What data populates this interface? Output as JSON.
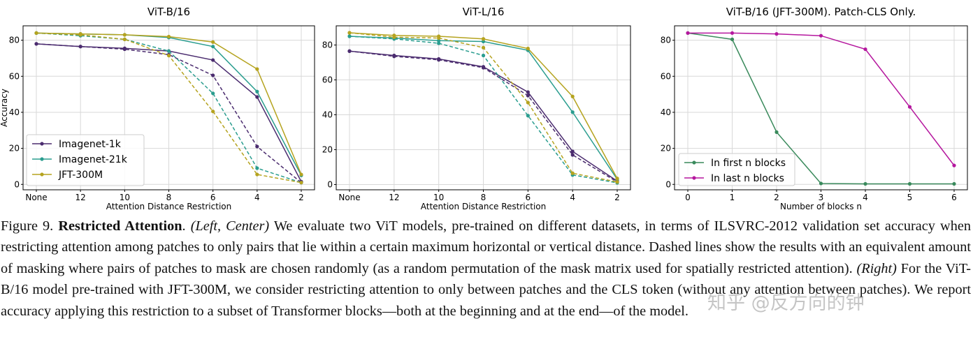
{
  "chart_data": [
    {
      "type": "line",
      "title": "ViT-B/16",
      "xlabel": "Attention Distance Restriction",
      "ylabel": "Accuracy",
      "categories": [
        "None",
        "12",
        "10",
        "8",
        "6",
        "4",
        "2"
      ],
      "yticks": [
        "0",
        "20",
        "40",
        "60",
        "80"
      ],
      "ylim": [
        -3,
        88
      ],
      "legend_position": "lower-left",
      "series": [
        {
          "name": "Imagenet-1k",
          "color": "#4b2c6f",
          "style": "solid",
          "values": [
            78,
            76.5,
            75.5,
            74,
            69,
            48.5,
            1.5
          ]
        },
        {
          "name": "Imagenet-21k",
          "color": "#2a9d8f",
          "style": "solid",
          "values": [
            84,
            83.5,
            83,
            81.5,
            76.5,
            51.5,
            5
          ]
        },
        {
          "name": "JFT-300M",
          "color": "#b5a31f",
          "style": "solid",
          "values": [
            84,
            83.5,
            83,
            82,
            79,
            64,
            5.5
          ]
        },
        {
          "name": "Imagenet-1k",
          "color": "#4b2c6f",
          "style": "dashed",
          "values": [
            78,
            76.5,
            75,
            72,
            60.5,
            21,
            1
          ]
        },
        {
          "name": "Imagenet-21k",
          "color": "#2a9d8f",
          "style": "dashed",
          "values": [
            84,
            82.5,
            80.5,
            74,
            50.5,
            9,
            1
          ]
        },
        {
          "name": "JFT-300M",
          "color": "#b5a31f",
          "style": "dashed",
          "values": [
            84,
            83,
            80.5,
            71.5,
            40.5,
            5.5,
            1
          ]
        }
      ]
    },
    {
      "type": "line",
      "title": "ViT-L/16",
      "xlabel": "Attention Distance Restriction",
      "ylabel": "",
      "categories": [
        "None",
        "12",
        "10",
        "8",
        "6",
        "4",
        "2"
      ],
      "yticks": [
        "0",
        "20",
        "40",
        "60",
        "80"
      ],
      "ylim": [
        -3,
        91
      ],
      "series": [
        {
          "name": "Imagenet-1k",
          "color": "#4b2c6f",
          "style": "solid",
          "values": [
            76.5,
            74,
            72,
            67.5,
            53,
            19,
            2
          ]
        },
        {
          "name": "Imagenet-21k",
          "color": "#2a9d8f",
          "style": "solid",
          "values": [
            85,
            84,
            82.5,
            82,
            77,
            41.5,
            3
          ]
        },
        {
          "name": "JFT-300M",
          "color": "#b5a31f",
          "style": "solid",
          "values": [
            87,
            85.5,
            85,
            83.5,
            78,
            50.5,
            3.5
          ]
        },
        {
          "name": "Imagenet-1k",
          "color": "#4b2c6f",
          "style": "dashed",
          "values": [
            76.5,
            73.5,
            71.5,
            67,
            51,
            17,
            1.5
          ]
        },
        {
          "name": "Imagenet-21k",
          "color": "#2a9d8f",
          "style": "dashed",
          "values": [
            85,
            83.5,
            81,
            74,
            39.5,
            5.5,
            1
          ]
        },
        {
          "name": "JFT-300M",
          "color": "#b5a31f",
          "style": "dashed",
          "values": [
            87,
            84.5,
            84,
            78.5,
            47,
            6.5,
            1.5
          ]
        }
      ]
    },
    {
      "type": "line",
      "title": "ViT-B/16 (JFT-300M). Patch-CLS Only.",
      "xlabel": "Number of blocks n",
      "ylabel": "",
      "categories": [
        "0",
        "1",
        "2",
        "3",
        "4",
        "5",
        "6"
      ],
      "yticks": [
        "0",
        "20",
        "40",
        "60",
        "80"
      ],
      "ylim": [
        -3,
        88
      ],
      "legend_position": "lower-left",
      "series": [
        {
          "name": "In first n blocks",
          "color": "#3a8a5c",
          "style": "solid",
          "values": [
            84,
            80.5,
            29,
            0.5,
            0.3,
            0.3,
            0.3
          ]
        },
        {
          "name": "In last n blocks",
          "color": "#b5179e",
          "style": "solid",
          "values": [
            84,
            84,
            83.5,
            82.5,
            75,
            43,
            10.5
          ]
        }
      ]
    }
  ],
  "caption": {
    "fig_label": "Figure 9.",
    "bold_title": "Restricted Attention",
    "after_title": ".",
    "left_center": "(Left, Center)",
    "text1": "We evaluate two ViT models, pre-trained on different datasets, in terms of ILSVRC-2012 validation set accuracy when restricting attention among patches to only pairs that lie within a certain maximum horizontal or vertical distance. Dashed lines show the results with an equivalent amount of masking where pairs of patches to mask are chosen randomly (as a random permutation of the mask matrix used for spatially restricted attention).",
    "right": "(Right)",
    "text2": "For the ViT-B/16 model pre-trained with JFT-300M, we consider restricting attention to only between patches and the CLS token (without any attention between patches). We report accuracy applying this restriction to a subset of Transformer blocks—both at the beginning and at the end—of the model."
  },
  "watermark": "知乎 @反方向的钟"
}
